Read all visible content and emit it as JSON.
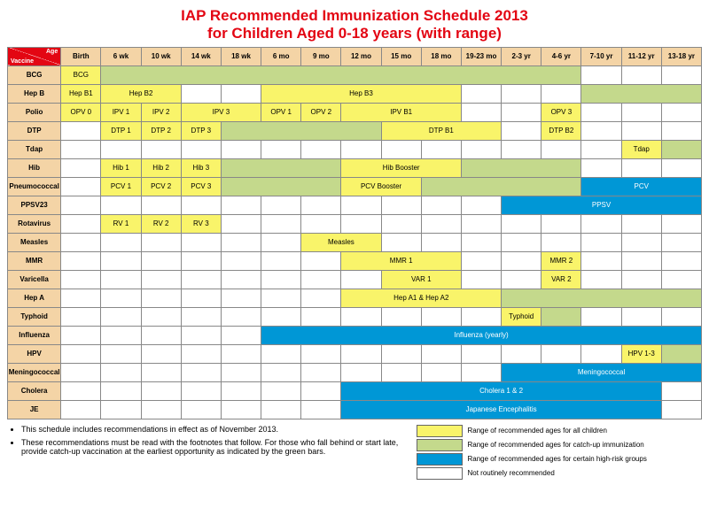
{
  "title_l1": "IAP Recommended Immunization Schedule 2013",
  "title_l2": "for Children Aged 0-18 years (with range)",
  "hdr_top": "Age",
  "hdr_bot": "Vaccine",
  "ages": [
    "Birth",
    "6 wk",
    "10 wk",
    "14 wk",
    "18 wk",
    "6 mo",
    "9 mo",
    "12 mo",
    "15 mo",
    "18 mo",
    "19-23 mo",
    "2-3 yr",
    "4-6 yr",
    "7-10 yr",
    "11-12 yr",
    "13-18 yr"
  ],
  "colors": {
    "yellow": "#f9f46a",
    "green": "#c4d98c",
    "blue": "#0097d6",
    "white": "#ffffff"
  },
  "rows": [
    {
      "v": "BCG",
      "cells": [
        {
          "c": "y",
          "t": "BCG",
          "s": 1
        },
        {
          "c": "g",
          "t": "",
          "s": 12
        },
        {
          "c": "w",
          "t": "",
          "s": 1
        },
        {
          "c": "w",
          "t": "",
          "s": 1
        },
        {
          "c": "w",
          "t": "",
          "s": 1
        }
      ]
    },
    {
      "v": "Hep B",
      "cells": [
        {
          "c": "y",
          "t": "Hep B1",
          "s": 1
        },
        {
          "c": "y",
          "t": "Hep B2",
          "s": 2
        },
        {
          "c": "w",
          "t": "",
          "s": 1
        },
        {
          "c": "w",
          "t": "",
          "s": 1
        },
        {
          "c": "y",
          "t": "Hep B3",
          "s": 5
        },
        {
          "c": "w",
          "t": "",
          "s": 1
        },
        {
          "c": "w",
          "t": "",
          "s": 1
        },
        {
          "c": "w",
          "t": "",
          "s": 1
        },
        {
          "c": "g",
          "t": "",
          "s": 3
        }
      ]
    },
    {
      "v": "Polio",
      "cells": [
        {
          "c": "y",
          "t": "OPV 0",
          "s": 1
        },
        {
          "c": "y",
          "t": "IPV 1",
          "s": 1
        },
        {
          "c": "y",
          "t": "IPV 2",
          "s": 1
        },
        {
          "c": "y",
          "t": "IPV 3",
          "s": 2
        },
        {
          "c": "y",
          "t": "OPV 1",
          "s": 1
        },
        {
          "c": "y",
          "t": "OPV 2",
          "s": 1
        },
        {
          "c": "y",
          "t": "IPV B1",
          "s": 3
        },
        {
          "c": "w",
          "t": "",
          "s": 1
        },
        {
          "c": "w",
          "t": "",
          "s": 1
        },
        {
          "c": "y",
          "t": "OPV 3",
          "s": 1
        },
        {
          "c": "w",
          "t": "",
          "s": 1
        },
        {
          "c": "w",
          "t": "",
          "s": 1
        },
        {
          "c": "w",
          "t": "",
          "s": 1
        }
      ]
    },
    {
      "v": "DTP",
      "cells": [
        {
          "c": "w",
          "t": "",
          "s": 1
        },
        {
          "c": "y",
          "t": "DTP 1",
          "s": 1
        },
        {
          "c": "y",
          "t": "DTP 2",
          "s": 1
        },
        {
          "c": "y",
          "t": "DTP 3",
          "s": 1
        },
        {
          "c": "g",
          "t": "",
          "s": 4
        },
        {
          "c": "y",
          "t": "DTP B1",
          "s": 3
        },
        {
          "c": "w",
          "t": "",
          "s": 1
        },
        {
          "c": "y",
          "t": "DTP B2",
          "s": 1
        },
        {
          "c": "w",
          "t": "",
          "s": 1
        },
        {
          "c": "w",
          "t": "",
          "s": 1
        },
        {
          "c": "w",
          "t": "",
          "s": 1
        }
      ]
    },
    {
      "v": "Tdap",
      "cells": [
        {
          "c": "w",
          "t": "",
          "s": 1
        },
        {
          "c": "w",
          "t": "",
          "s": 1
        },
        {
          "c": "w",
          "t": "",
          "s": 1
        },
        {
          "c": "w",
          "t": "",
          "s": 1
        },
        {
          "c": "w",
          "t": "",
          "s": 1
        },
        {
          "c": "w",
          "t": "",
          "s": 1
        },
        {
          "c": "w",
          "t": "",
          "s": 1
        },
        {
          "c": "w",
          "t": "",
          "s": 1
        },
        {
          "c": "w",
          "t": "",
          "s": 1
        },
        {
          "c": "w",
          "t": "",
          "s": 1
        },
        {
          "c": "w",
          "t": "",
          "s": 1
        },
        {
          "c": "w",
          "t": "",
          "s": 1
        },
        {
          "c": "w",
          "t": "",
          "s": 1
        },
        {
          "c": "w",
          "t": "",
          "s": 1
        },
        {
          "c": "y",
          "t": "Tdap",
          "s": 1
        },
        {
          "c": "g",
          "t": "",
          "s": 1
        }
      ]
    },
    {
      "v": "Hib",
      "cells": [
        {
          "c": "w",
          "t": "",
          "s": 1
        },
        {
          "c": "y",
          "t": "Hib 1",
          "s": 1
        },
        {
          "c": "y",
          "t": "Hib 2",
          "s": 1
        },
        {
          "c": "y",
          "t": "Hib 3",
          "s": 1
        },
        {
          "c": "g",
          "t": "",
          "s": 3
        },
        {
          "c": "y",
          "t": "Hib Booster",
          "s": 3
        },
        {
          "c": "g",
          "t": "",
          "s": 3
        },
        {
          "c": "w",
          "t": "",
          "s": 1
        },
        {
          "c": "w",
          "t": "",
          "s": 1
        },
        {
          "c": "w",
          "t": "",
          "s": 1
        }
      ]
    },
    {
      "v": "Pneumococcal",
      "cells": [
        {
          "c": "w",
          "t": "",
          "s": 1
        },
        {
          "c": "y",
          "t": "PCV 1",
          "s": 1
        },
        {
          "c": "y",
          "t": "PCV 2",
          "s": 1
        },
        {
          "c": "y",
          "t": "PCV 3",
          "s": 1
        },
        {
          "c": "g",
          "t": "",
          "s": 3
        },
        {
          "c": "y",
          "t": "PCV Booster",
          "s": 2
        },
        {
          "c": "g",
          "t": "",
          "s": 4
        },
        {
          "c": "b",
          "t": "PCV",
          "s": 3
        }
      ]
    },
    {
      "v": "PPSV23",
      "cells": [
        {
          "c": "w",
          "t": "",
          "s": 1
        },
        {
          "c": "w",
          "t": "",
          "s": 1
        },
        {
          "c": "w",
          "t": "",
          "s": 1
        },
        {
          "c": "w",
          "t": "",
          "s": 1
        },
        {
          "c": "w",
          "t": "",
          "s": 1
        },
        {
          "c": "w",
          "t": "",
          "s": 1
        },
        {
          "c": "w",
          "t": "",
          "s": 1
        },
        {
          "c": "w",
          "t": "",
          "s": 1
        },
        {
          "c": "w",
          "t": "",
          "s": 1
        },
        {
          "c": "w",
          "t": "",
          "s": 1
        },
        {
          "c": "w",
          "t": "",
          "s": 1
        },
        {
          "c": "b",
          "t": "PPSV",
          "s": 5
        }
      ]
    },
    {
      "v": "Rotavirus",
      "cells": [
        {
          "c": "w",
          "t": "",
          "s": 1
        },
        {
          "c": "y",
          "t": "RV 1",
          "s": 1
        },
        {
          "c": "y",
          "t": "RV 2",
          "s": 1
        },
        {
          "c": "y",
          "t": "RV 3",
          "s": 1
        },
        {
          "c": "w",
          "t": "",
          "s": 1
        },
        {
          "c": "w",
          "t": "",
          "s": 1
        },
        {
          "c": "w",
          "t": "",
          "s": 1
        },
        {
          "c": "w",
          "t": "",
          "s": 1
        },
        {
          "c": "w",
          "t": "",
          "s": 1
        },
        {
          "c": "w",
          "t": "",
          "s": 1
        },
        {
          "c": "w",
          "t": "",
          "s": 1
        },
        {
          "c": "w",
          "t": "",
          "s": 1
        },
        {
          "c": "w",
          "t": "",
          "s": 1
        },
        {
          "c": "w",
          "t": "",
          "s": 1
        },
        {
          "c": "w",
          "t": "",
          "s": 1
        },
        {
          "c": "w",
          "t": "",
          "s": 1
        }
      ]
    },
    {
      "v": "Measles",
      "cells": [
        {
          "c": "w",
          "t": "",
          "s": 1
        },
        {
          "c": "w",
          "t": "",
          "s": 1
        },
        {
          "c": "w",
          "t": "",
          "s": 1
        },
        {
          "c": "w",
          "t": "",
          "s": 1
        },
        {
          "c": "w",
          "t": "",
          "s": 1
        },
        {
          "c": "w",
          "t": "",
          "s": 1
        },
        {
          "c": "y",
          "t": "Measles",
          "s": 2
        },
        {
          "c": "w",
          "t": "",
          "s": 1
        },
        {
          "c": "w",
          "t": "",
          "s": 1
        },
        {
          "c": "w",
          "t": "",
          "s": 1
        },
        {
          "c": "w",
          "t": "",
          "s": 1
        },
        {
          "c": "w",
          "t": "",
          "s": 1
        },
        {
          "c": "w",
          "t": "",
          "s": 1
        },
        {
          "c": "w",
          "t": "",
          "s": 1
        },
        {
          "c": "w",
          "t": "",
          "s": 1
        }
      ]
    },
    {
      "v": "MMR",
      "cells": [
        {
          "c": "w",
          "t": "",
          "s": 1
        },
        {
          "c": "w",
          "t": "",
          "s": 1
        },
        {
          "c": "w",
          "t": "",
          "s": 1
        },
        {
          "c": "w",
          "t": "",
          "s": 1
        },
        {
          "c": "w",
          "t": "",
          "s": 1
        },
        {
          "c": "w",
          "t": "",
          "s": 1
        },
        {
          "c": "w",
          "t": "",
          "s": 1
        },
        {
          "c": "y",
          "t": "MMR 1",
          "s": 3
        },
        {
          "c": "w",
          "t": "",
          "s": 1
        },
        {
          "c": "w",
          "t": "",
          "s": 1
        },
        {
          "c": "y",
          "t": "MMR 2",
          "s": 1
        },
        {
          "c": "w",
          "t": "",
          "s": 1
        },
        {
          "c": "w",
          "t": "",
          "s": 1
        },
        {
          "c": "w",
          "t": "",
          "s": 1
        }
      ]
    },
    {
      "v": "Varicella",
      "cells": [
        {
          "c": "w",
          "t": "",
          "s": 1
        },
        {
          "c": "w",
          "t": "",
          "s": 1
        },
        {
          "c": "w",
          "t": "",
          "s": 1
        },
        {
          "c": "w",
          "t": "",
          "s": 1
        },
        {
          "c": "w",
          "t": "",
          "s": 1
        },
        {
          "c": "w",
          "t": "",
          "s": 1
        },
        {
          "c": "w",
          "t": "",
          "s": 1
        },
        {
          "c": "w",
          "t": "",
          "s": 1
        },
        {
          "c": "y",
          "t": "VAR 1",
          "s": 2
        },
        {
          "c": "w",
          "t": "",
          "s": 1
        },
        {
          "c": "w",
          "t": "",
          "s": 1
        },
        {
          "c": "y",
          "t": "VAR 2",
          "s": 1
        },
        {
          "c": "w",
          "t": "",
          "s": 1
        },
        {
          "c": "w",
          "t": "",
          "s": 1
        },
        {
          "c": "w",
          "t": "",
          "s": 1
        }
      ]
    },
    {
      "v": "Hep A",
      "cells": [
        {
          "c": "w",
          "t": "",
          "s": 1
        },
        {
          "c": "w",
          "t": "",
          "s": 1
        },
        {
          "c": "w",
          "t": "",
          "s": 1
        },
        {
          "c": "w",
          "t": "",
          "s": 1
        },
        {
          "c": "w",
          "t": "",
          "s": 1
        },
        {
          "c": "w",
          "t": "",
          "s": 1
        },
        {
          "c": "w",
          "t": "",
          "s": 1
        },
        {
          "c": "y",
          "t": "Hep A1 & Hep A2",
          "s": 4
        },
        {
          "c": "g",
          "t": "",
          "s": 5
        }
      ]
    },
    {
      "v": "Typhoid",
      "cells": [
        {
          "c": "w",
          "t": "",
          "s": 1
        },
        {
          "c": "w",
          "t": "",
          "s": 1
        },
        {
          "c": "w",
          "t": "",
          "s": 1
        },
        {
          "c": "w",
          "t": "",
          "s": 1
        },
        {
          "c": "w",
          "t": "",
          "s": 1
        },
        {
          "c": "w",
          "t": "",
          "s": 1
        },
        {
          "c": "w",
          "t": "",
          "s": 1
        },
        {
          "c": "w",
          "t": "",
          "s": 1
        },
        {
          "c": "w",
          "t": "",
          "s": 1
        },
        {
          "c": "w",
          "t": "",
          "s": 1
        },
        {
          "c": "w",
          "t": "",
          "s": 1
        },
        {
          "c": "y",
          "t": "Typhoid",
          "s": 1
        },
        {
          "c": "g",
          "t": "",
          "s": 1
        },
        {
          "c": "w",
          "t": "",
          "s": 1
        },
        {
          "c": "w",
          "t": "",
          "s": 1
        },
        {
          "c": "w",
          "t": "",
          "s": 1
        }
      ]
    },
    {
      "v": "Influenza",
      "cells": [
        {
          "c": "w",
          "t": "",
          "s": 1
        },
        {
          "c": "w",
          "t": "",
          "s": 1
        },
        {
          "c": "w",
          "t": "",
          "s": 1
        },
        {
          "c": "w",
          "t": "",
          "s": 1
        },
        {
          "c": "w",
          "t": "",
          "s": 1
        },
        {
          "c": "b",
          "t": "Influenza (yearly)",
          "s": 11
        }
      ]
    },
    {
      "v": "HPV",
      "cells": [
        {
          "c": "w",
          "t": "",
          "s": 1
        },
        {
          "c": "w",
          "t": "",
          "s": 1
        },
        {
          "c": "w",
          "t": "",
          "s": 1
        },
        {
          "c": "w",
          "t": "",
          "s": 1
        },
        {
          "c": "w",
          "t": "",
          "s": 1
        },
        {
          "c": "w",
          "t": "",
          "s": 1
        },
        {
          "c": "w",
          "t": "",
          "s": 1
        },
        {
          "c": "w",
          "t": "",
          "s": 1
        },
        {
          "c": "w",
          "t": "",
          "s": 1
        },
        {
          "c": "w",
          "t": "",
          "s": 1
        },
        {
          "c": "w",
          "t": "",
          "s": 1
        },
        {
          "c": "w",
          "t": "",
          "s": 1
        },
        {
          "c": "w",
          "t": "",
          "s": 1
        },
        {
          "c": "w",
          "t": "",
          "s": 1
        },
        {
          "c": "y",
          "t": "HPV 1-3",
          "s": 1
        },
        {
          "c": "g",
          "t": "",
          "s": 1
        }
      ]
    },
    {
      "v": "Meningococcal",
      "cells": [
        {
          "c": "w",
          "t": "",
          "s": 1
        },
        {
          "c": "w",
          "t": "",
          "s": 1
        },
        {
          "c": "w",
          "t": "",
          "s": 1
        },
        {
          "c": "w",
          "t": "",
          "s": 1
        },
        {
          "c": "w",
          "t": "",
          "s": 1
        },
        {
          "c": "w",
          "t": "",
          "s": 1
        },
        {
          "c": "w",
          "t": "",
          "s": 1
        },
        {
          "c": "w",
          "t": "",
          "s": 1
        },
        {
          "c": "w",
          "t": "",
          "s": 1
        },
        {
          "c": "w",
          "t": "",
          "s": 1
        },
        {
          "c": "w",
          "t": "",
          "s": 1
        },
        {
          "c": "b",
          "t": "Meningococcal",
          "s": 5
        }
      ]
    },
    {
      "v": "Cholera",
      "cells": [
        {
          "c": "w",
          "t": "",
          "s": 1
        },
        {
          "c": "w",
          "t": "",
          "s": 1
        },
        {
          "c": "w",
          "t": "",
          "s": 1
        },
        {
          "c": "w",
          "t": "",
          "s": 1
        },
        {
          "c": "w",
          "t": "",
          "s": 1
        },
        {
          "c": "w",
          "t": "",
          "s": 1
        },
        {
          "c": "w",
          "t": "",
          "s": 1
        },
        {
          "c": "b",
          "t": "Cholera 1 & 2",
          "s": 8
        },
        {
          "c": "w",
          "t": "",
          "s": 1
        }
      ]
    },
    {
      "v": "JE",
      "cells": [
        {
          "c": "w",
          "t": "",
          "s": 1
        },
        {
          "c": "w",
          "t": "",
          "s": 1
        },
        {
          "c": "w",
          "t": "",
          "s": 1
        },
        {
          "c": "w",
          "t": "",
          "s": 1
        },
        {
          "c": "w",
          "t": "",
          "s": 1
        },
        {
          "c": "w",
          "t": "",
          "s": 1
        },
        {
          "c": "w",
          "t": "",
          "s": 1
        },
        {
          "c": "b",
          "t": "Japanese Encephalitis",
          "s": 8
        },
        {
          "c": "w",
          "t": "",
          "s": 1
        }
      ]
    }
  ],
  "notes": [
    "This schedule includes recommendations in effect as of November 2013.",
    "These recommendations must be read with the footnotes that follow. For those who fall behind or start late, provide catch-up vaccination at the earliest opportunity as indicated by the green bars."
  ],
  "legend": [
    {
      "c": "#f9f46a",
      "t": "Range of recommended ages for all children"
    },
    {
      "c": "#c4d98c",
      "t": "Range of recommended ages for catch-up immunization"
    },
    {
      "c": "#0097d6",
      "t": "Range of recommended ages for certain high-risk groups"
    },
    {
      "c": "#ffffff",
      "t": "Not routinely recommended"
    }
  ]
}
